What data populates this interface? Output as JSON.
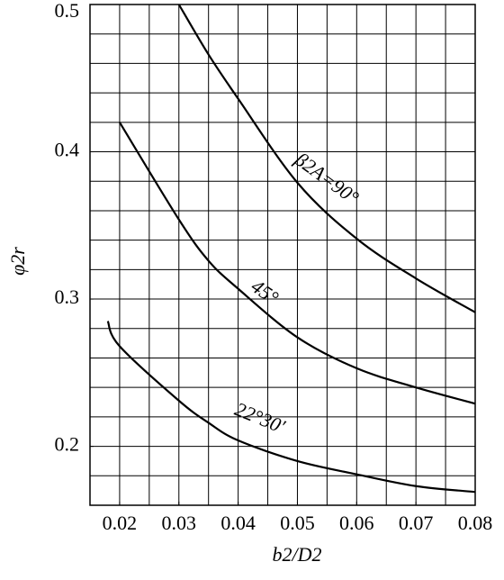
{
  "chart_data": {
    "type": "line",
    "x_label": "b2/D2",
    "y_label": "φ2r",
    "x": [
      0.018,
      0.02,
      0.03,
      0.035,
      0.04,
      0.05,
      0.06,
      0.07,
      0.08
    ],
    "series": [
      {
        "name": "β2A=90°",
        "color": "#000000",
        "values": [
          null,
          null,
          0.5,
          0.466,
          0.436,
          0.379,
          0.341,
          0.314,
          0.291
        ]
      },
      {
        "name": "45°",
        "color": "#000000",
        "values": [
          null,
          0.42,
          0.354,
          0.326,
          0.307,
          0.274,
          0.253,
          0.24,
          0.229
        ]
      },
      {
        "name": "22°30′",
        "color": "#000000",
        "values": [
          0.285,
          0.268,
          0.231,
          0.216,
          0.204,
          0.19,
          0.181,
          0.173,
          0.169
        ]
      }
    ],
    "xlim": [
      0.015,
      0.08
    ],
    "ylim": [
      0.16,
      0.5
    ],
    "xticks": [
      0.02,
      0.03,
      0.04,
      0.05,
      0.06,
      0.07,
      0.08
    ],
    "yticks": [
      0.2,
      0.3,
      0.4,
      0.5
    ],
    "grid": true,
    "grid_step": [
      0.005,
      0.02
    ]
  }
}
